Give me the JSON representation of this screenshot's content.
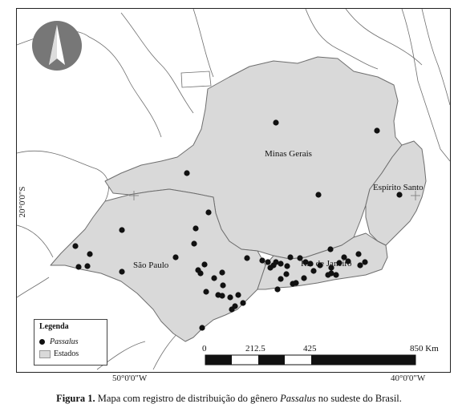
{
  "map": {
    "states": [
      "Minas Gerais",
      "Espírito Santo",
      "São Paulo",
      "Rio de Janeiro"
    ],
    "latitude_label": "20°0'0\"S",
    "longitude_labels": [
      "50°0'0\"W",
      "40°0'0\"W"
    ],
    "north_arrow": "north-arrow-icon",
    "colors": {
      "land": "#d9d9d9",
      "border": "#6e6e6e",
      "record": "#111111",
      "outline": "#555555"
    }
  },
  "legend": {
    "title": "Legenda",
    "taxon": "Passalus",
    "layer": "Estados"
  },
  "scale_bar": {
    "ticks": [
      "0",
      "212.5",
      "425",
      "850 Km"
    ]
  },
  "caption": {
    "label": "Figura 1.",
    "text_before": " Mapa com registro de distribuição do gênero ",
    "taxon": "Passalus",
    "text_after": " no sudeste do Brasil."
  },
  "records": [
    [
      343,
      152
    ],
    [
      469,
      162
    ],
    [
      232,
      215
    ],
    [
      396,
      242
    ],
    [
      497,
      242
    ],
    [
      259,
      264
    ],
    [
      151,
      286
    ],
    [
      243,
      284
    ],
    [
      93,
      306
    ],
    [
      111,
      316
    ],
    [
      97,
      332
    ],
    [
      108,
      331
    ],
    [
      151,
      338
    ],
    [
      218,
      320
    ],
    [
      241,
      303
    ],
    [
      254,
      329
    ],
    [
      266,
      346
    ],
    [
      246,
      336
    ],
    [
      249,
      340
    ],
    [
      276,
      339
    ],
    [
      277,
      355
    ],
    [
      256,
      363
    ],
    [
      271,
      367
    ],
    [
      276,
      368
    ],
    [
      286,
      370
    ],
    [
      296,
      367
    ],
    [
      302,
      377
    ],
    [
      288,
      385
    ],
    [
      292,
      381
    ],
    [
      251,
      408
    ],
    [
      307,
      321
    ],
    [
      326,
      324
    ],
    [
      333,
      326
    ],
    [
      340,
      330
    ],
    [
      343,
      326
    ],
    [
      349,
      328
    ],
    [
      357,
      331
    ],
    [
      336,
      333
    ],
    [
      361,
      320
    ],
    [
      356,
      341
    ],
    [
      349,
      347
    ],
    [
      345,
      360
    ],
    [
      364,
      353
    ],
    [
      368,
      352
    ],
    [
      378,
      346
    ],
    [
      373,
      321
    ],
    [
      380,
      326
    ],
    [
      386,
      328
    ],
    [
      390,
      337
    ],
    [
      398,
      330
    ],
    [
      412,
      333
    ],
    [
      411,
      310
    ],
    [
      422,
      327
    ],
    [
      428,
      320
    ],
    [
      433,
      325
    ],
    [
      446,
      316
    ],
    [
      448,
      330
    ],
    [
      454,
      326
    ],
    [
      408,
      342
    ],
    [
      412,
      340
    ],
    [
      418,
      342
    ]
  ]
}
